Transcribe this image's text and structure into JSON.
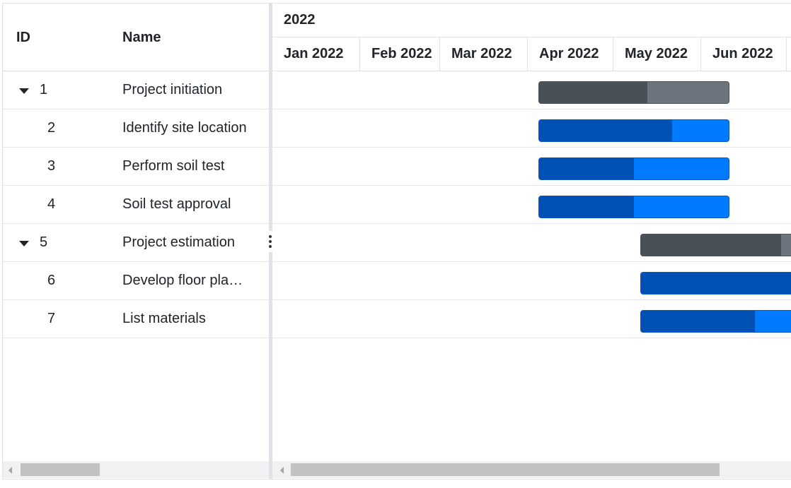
{
  "grid": {
    "columns": {
      "id": "ID",
      "name": "Name"
    },
    "rows": [
      {
        "id": "1",
        "name": "Project initiation",
        "expanded": true,
        "parent": true
      },
      {
        "id": "2",
        "name": "Identify site location",
        "parent": false
      },
      {
        "id": "3",
        "name": "Perform soil test",
        "parent": false
      },
      {
        "id": "4",
        "name": "Soil test approval",
        "parent": false
      },
      {
        "id": "5",
        "name": "Project estimation",
        "expanded": true,
        "parent": true
      },
      {
        "id": "6",
        "name": "Develop floor pla…",
        "parent": false
      },
      {
        "id": "7",
        "name": "List materials",
        "parent": false
      }
    ]
  },
  "timeline": {
    "year": "2022",
    "months": [
      "Jan 2022",
      "Feb 2022",
      "Mar 2022",
      "Apr 2022",
      "May 2022",
      "Jun 2022"
    ]
  },
  "tasks": [
    {
      "id": "1",
      "type": "summary",
      "progress": 0.57
    },
    {
      "id": "2",
      "type": "task",
      "progress": 0.7
    },
    {
      "id": "3",
      "type": "task",
      "progress": 0.5
    },
    {
      "id": "4",
      "type": "task",
      "progress": 0.5
    },
    {
      "id": "5",
      "type": "summary",
      "progress": 0.8
    },
    {
      "id": "6",
      "type": "task",
      "progress": 0.92
    },
    {
      "id": "7",
      "type": "task",
      "progress": 0.65
    }
  ],
  "colors": {
    "summary_bar": "#6c757d",
    "summary_progress": "#495057",
    "task_bar": "#007bff",
    "task_progress": "#0051b3"
  }
}
